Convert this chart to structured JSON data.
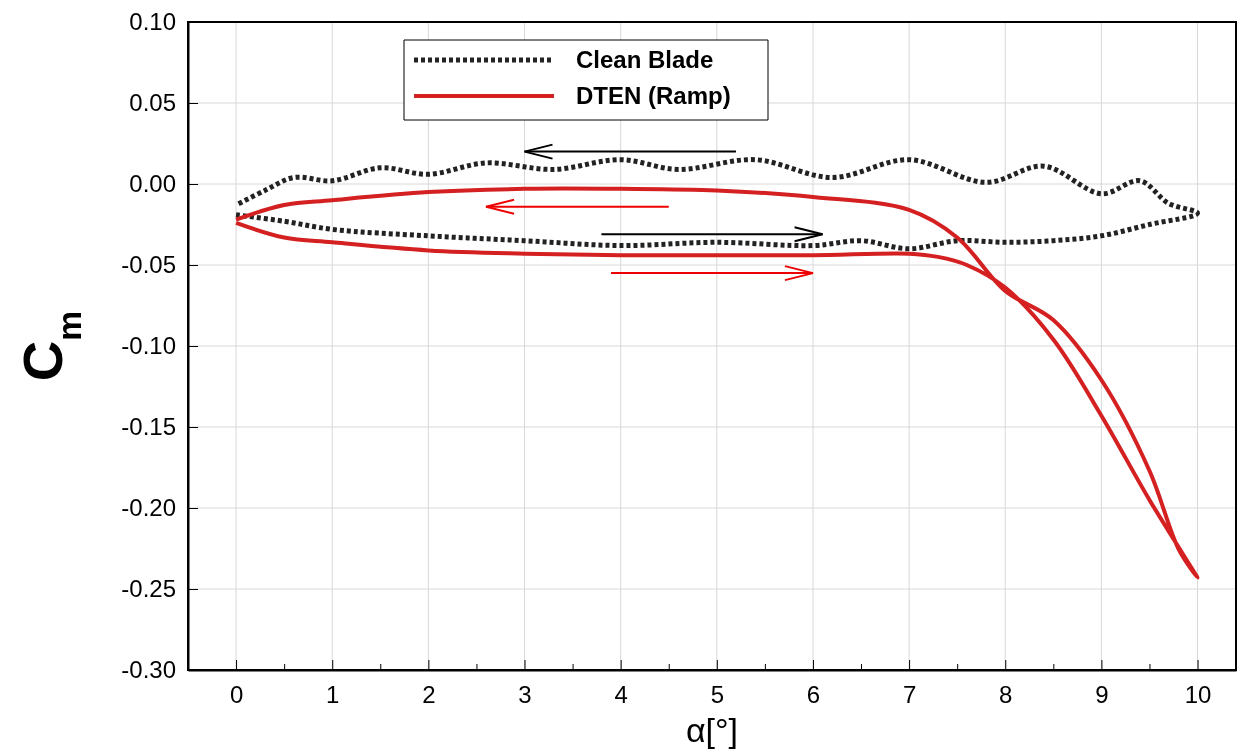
{
  "chart_data": {
    "type": "line",
    "xlabel": "α[°]",
    "ylabel": "C$_{m}$",
    "xlim": [
      -0.5,
      10.4
    ],
    "ylim": [
      -0.3,
      0.1
    ],
    "xticks": [
      0,
      {
        "value": 0.5,
        "label": null
      },
      1,
      {
        "value": 1.5,
        "label": null
      },
      2,
      {
        "value": 2.5,
        "label": null
      },
      3,
      {
        "value": 3.5,
        "label": null
      },
      4,
      {
        "value": 4.5,
        "label": null
      },
      5,
      {
        "value": 5.5,
        "label": null
      },
      6,
      {
        "value": 6.5,
        "label": null
      },
      7,
      {
        "value": 7.5,
        "label": null
      },
      8,
      {
        "value": 8.5,
        "label": null
      },
      9,
      {
        "value": 9.5,
        "label": null
      },
      10
    ],
    "yticks": [
      {
        "value": 0.1,
        "label": "0.10"
      },
      {
        "value": 0.05,
        "label": "0.05"
      },
      {
        "value": 0,
        "label": "0.00"
      },
      {
        "value": -0.05,
        "label": "-0.05"
      },
      {
        "value": -0.1,
        "label": "-0.10"
      },
      {
        "value": -0.15,
        "label": "-0.15"
      },
      {
        "value": -0.2,
        "label": "-0.20"
      },
      {
        "value": -0.25,
        "label": "-0.25"
      },
      {
        "value": -0.3,
        "label": "-0.30"
      }
    ],
    "grid": true,
    "legend": "top",
    "marker": "none",
    "series": [
      {
        "name": "Clean Blade",
        "color": "#222222",
        "line_style": "dotted",
        "x": [
          0,
          0.5,
          1,
          2,
          3,
          4,
          5,
          6,
          6.5,
          7,
          7.5,
          8,
          8.5,
          9,
          9.5,
          10,
          9.7,
          9.4,
          9,
          8.4,
          7.8,
          7,
          6.2,
          5.4,
          4.6,
          4,
          3.3,
          2.6,
          2,
          1.5,
          1,
          0.6,
          0.3,
          0
        ],
        "values": [
          -0.019,
          -0.023,
          -0.028,
          -0.032,
          -0.035,
          -0.038,
          -0.036,
          -0.038,
          -0.035,
          -0.04,
          -0.035,
          -0.036,
          -0.035,
          -0.032,
          -0.025,
          -0.018,
          -0.012,
          0.002,
          -0.006,
          0.011,
          0.001,
          0.015,
          0.004,
          0.015,
          0.009,
          0.015,
          0.009,
          0.013,
          0.006,
          0.01,
          0.002,
          0.004,
          -0.004,
          -0.013
        ]
      },
      {
        "name": "DTEN (Ramp)",
        "color": "#d42020",
        "line_style": "solid",
        "x": [
          0,
          0.5,
          1,
          2,
          3,
          4,
          5,
          6,
          7,
          7.3,
          7.6,
          8,
          8.5,
          9,
          9.5,
          10,
          9.8,
          9.5,
          9,
          8.5,
          8,
          7.5,
          7,
          6,
          5,
          4,
          3,
          2,
          1,
          0.5,
          0
        ],
        "values": [
          -0.024,
          -0.033,
          -0.036,
          -0.041,
          -0.043,
          -0.044,
          -0.044,
          -0.044,
          -0.043,
          -0.045,
          -0.05,
          -0.064,
          -0.096,
          -0.143,
          -0.195,
          -0.243,
          -0.225,
          -0.177,
          -0.121,
          -0.084,
          -0.066,
          -0.033,
          -0.016,
          -0.008,
          -0.004,
          -0.003,
          -0.003,
          -0.005,
          -0.01,
          -0.013,
          -0.022
        ]
      }
    ]
  }
}
